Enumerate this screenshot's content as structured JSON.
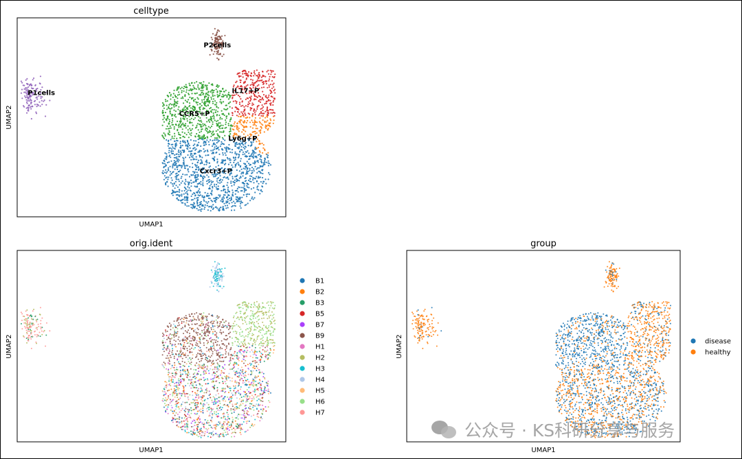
{
  "watermark": {
    "text": "公众号 · KS科研分享与服务"
  },
  "chart_data": [
    {
      "type": "scatter",
      "title": "celltype",
      "xlabel": "UMAP1",
      "ylabel": "UMAP2",
      "legend": "on-data",
      "clusters": [
        {
          "label": "P1cells",
          "color": "#9467bd"
        },
        {
          "label": "P2cells",
          "color": "#8c564b"
        },
        {
          "label": "IL17+P",
          "color": "#d62728"
        },
        {
          "label": "CCR5+P",
          "color": "#2ca02c"
        },
        {
          "label": "Ly6g+P",
          "color": "#ff7f0e"
        },
        {
          "label": "Cxcr3+P",
          "color": "#1f77b4"
        }
      ]
    },
    {
      "type": "scatter",
      "title": "orig.ident",
      "xlabel": "UMAP1",
      "ylabel": "UMAP2",
      "legend": "right",
      "series": [
        {
          "name": "B1",
          "color": "#1f77b4"
        },
        {
          "name": "B2",
          "color": "#ff7f0e"
        },
        {
          "name": "B3",
          "color": "#279e68"
        },
        {
          "name": "B5",
          "color": "#d62728"
        },
        {
          "name": "B7",
          "color": "#aa40fc"
        },
        {
          "name": "B9",
          "color": "#8c564b"
        },
        {
          "name": "H1",
          "color": "#e377c2"
        },
        {
          "name": "H2",
          "color": "#b5bd61"
        },
        {
          "name": "H3",
          "color": "#17becf"
        },
        {
          "name": "H4",
          "color": "#aec7e8"
        },
        {
          "name": "H5",
          "color": "#ffbb78"
        },
        {
          "name": "H6",
          "color": "#98df8a"
        },
        {
          "name": "H7",
          "color": "#ff9896"
        }
      ]
    },
    {
      "type": "scatter",
      "title": "group",
      "xlabel": "UMAP1",
      "ylabel": "UMAP2",
      "legend": "right",
      "series": [
        {
          "name": "disease",
          "color": "#1f77b4"
        },
        {
          "name": "healthy",
          "color": "#ff7f0e"
        }
      ]
    }
  ]
}
